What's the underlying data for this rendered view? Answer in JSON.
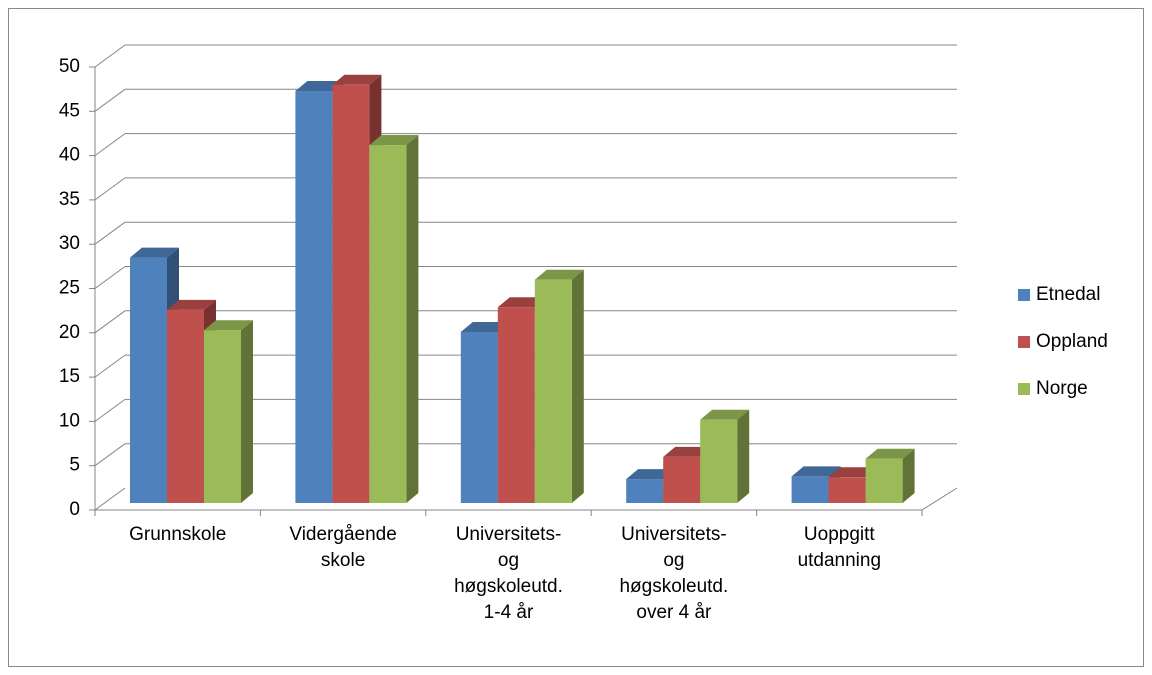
{
  "chart_data": {
    "type": "bar3d",
    "categories": [
      "Grunnskole",
      "Vidergående skole",
      "Universitets- og høgskoleutd. 1-4 år",
      "Universitets- og høgskoleutd. over 4 år",
      "Uoppgitt utdanning"
    ],
    "series": [
      {
        "name": "Etnedal",
        "color": "#4f81bd",
        "values": [
          27.7,
          46.5,
          19.3,
          2.7,
          3.0
        ]
      },
      {
        "name": "Oppland",
        "color": "#c0504d",
        "values": [
          21.8,
          47.2,
          22.1,
          5.2,
          2.9
        ]
      },
      {
        "name": "Norge",
        "color": "#9bbb59",
        "values": [
          19.5,
          40.4,
          25.2,
          9.4,
          5.0
        ]
      }
    ],
    "ylim": [
      0,
      50
    ],
    "yticks": [
      0,
      5,
      10,
      15,
      20,
      25,
      30,
      35,
      40,
      45,
      50
    ],
    "grid": true,
    "legend": "right"
  }
}
